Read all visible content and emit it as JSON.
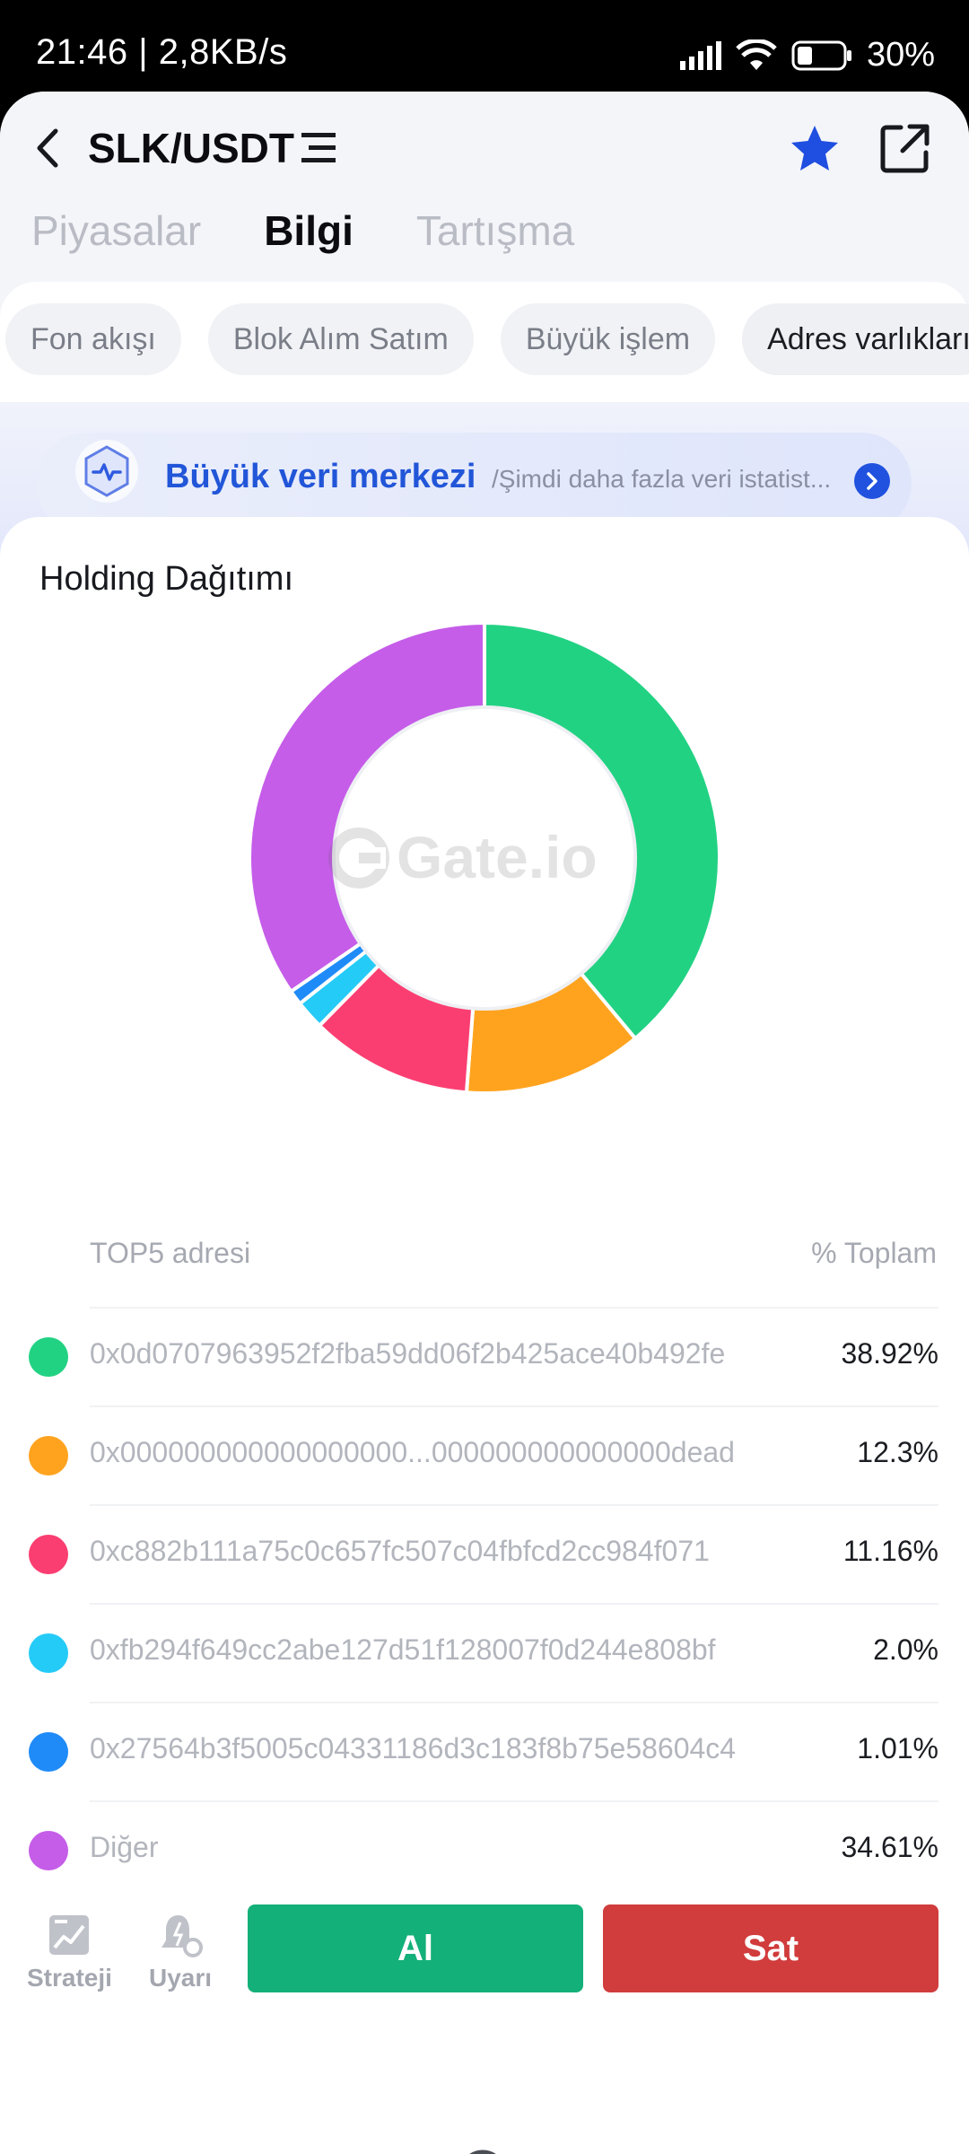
{
  "status_bar": {
    "time": "21:46",
    "speed": "2,8KB/s",
    "battery": "30%"
  },
  "header": {
    "pair": "SLK/USDT"
  },
  "tabs": [
    {
      "label": "Piyasalar",
      "active": false
    },
    {
      "label": "Bilgi",
      "active": true
    },
    {
      "label": "Tartışma",
      "active": false
    }
  ],
  "chips": [
    {
      "label": "Fon akışı",
      "active": false
    },
    {
      "label": "Blok Alım Satım",
      "active": false
    },
    {
      "label": "Büyük işlem",
      "active": false
    },
    {
      "label": "Adres varlıkları",
      "active": true
    }
  ],
  "banner": {
    "title": "Büyük veri merkezi",
    "subtitle": "/Şimdi daha fazla veri istatist..."
  },
  "holding": {
    "title": "Holding Dağıtımı",
    "watermark": "Gate.io",
    "list_header_left": "TOP5 adresi",
    "list_header_right": "% Toplam"
  },
  "chart_data": {
    "type": "pie",
    "title": "Holding Dağıtımı",
    "categories": [
      "0x0d0707963952f2fba59dd06f2b425ace40b492fe",
      "0x000000000000000000...000000000000000dead",
      "0xc882b111a75c0c657fc507c04fbfcd2cc984f071",
      "0xfb294f649cc2abe127d51f128007f0d244e808bf",
      "0x27564b3f5005c04331186d3c183f8b75e58604c4",
      "Diğer"
    ],
    "values": [
      38.92,
      12.3,
      11.16,
      2.0,
      1.01,
      34.61
    ],
    "labels": [
      "38.92%",
      "12.3%",
      "11.16%",
      "2.0%",
      "1.01%",
      "34.61%"
    ],
    "colors": [
      "#22d283",
      "#ffa31f",
      "#fb3e71",
      "#25cbf7",
      "#1f8bf8",
      "#c55de9"
    ],
    "style": "donut"
  },
  "bottom_bar": {
    "strategy": "Strateji",
    "alert": "Uyarı",
    "buy": "Al",
    "sell": "Sat"
  }
}
